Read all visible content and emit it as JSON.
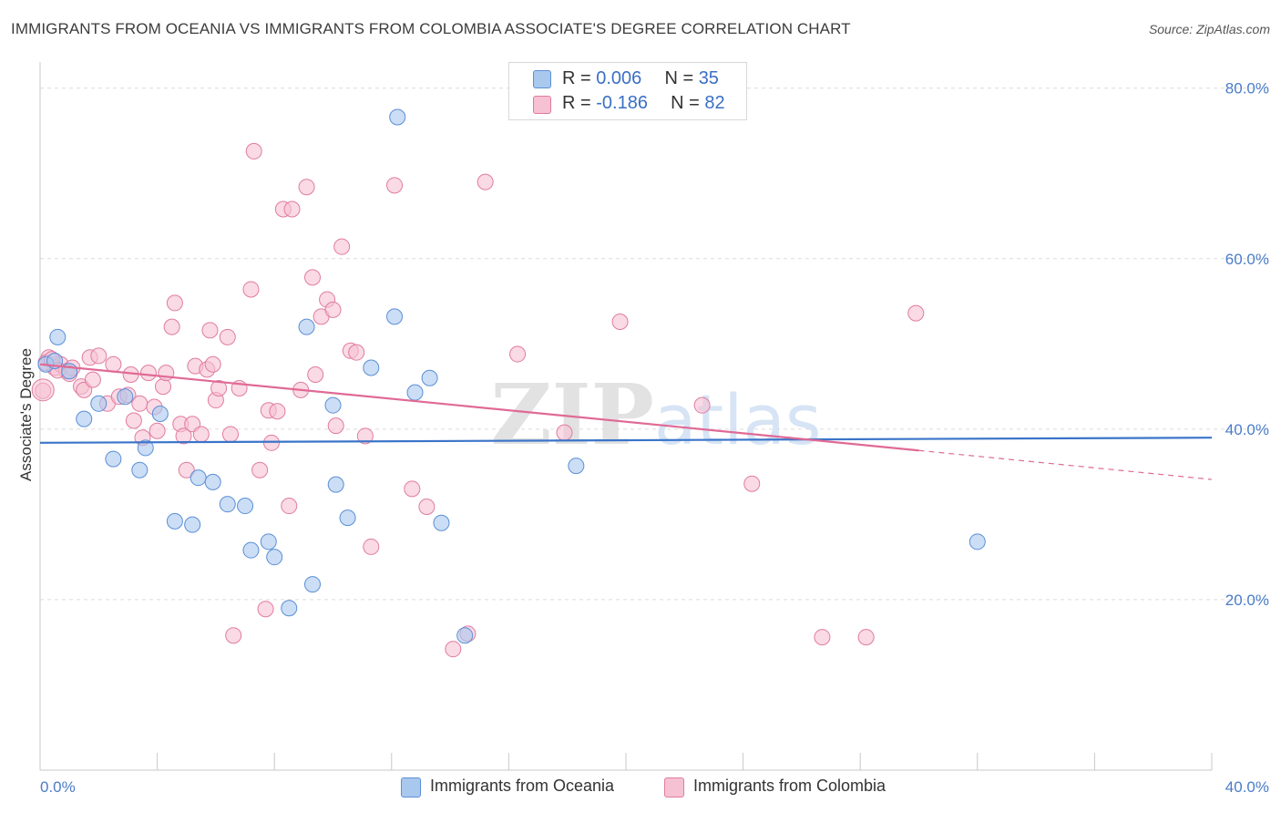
{
  "header": {
    "title": "IMMIGRANTS FROM OCEANIA VS IMMIGRANTS FROM COLOMBIA ASSOCIATE'S DEGREE CORRELATION CHART",
    "source": "Source: ZipAtlas.com"
  },
  "legend": {
    "series1": {
      "r_label": "R = ",
      "r_value": "0.006",
      "n_label": "N = ",
      "n_value": "35"
    },
    "series2": {
      "r_label": "R = ",
      "r_value": "-0.186",
      "n_label": "N = ",
      "n_value": "82"
    }
  },
  "bottom_legend": {
    "series1": "Immigrants from Oceania",
    "series2": "Immigrants from Colombia"
  },
  "watermark": "ZIPatlas",
  "colors": {
    "blue_fill": "#a9c8ee",
    "blue_stroke": "#5b8fd6",
    "blue_line": "#3a74c9",
    "pink_fill": "#f6c1d2",
    "pink_stroke": "#e07ca0",
    "pink_line": "#e06a95",
    "grid": "#dcdcdc",
    "tick_label": "#4a7cc9"
  },
  "chart_data": {
    "type": "scatter",
    "title": "IMMIGRANTS FROM OCEANIA VS IMMIGRANTS FROM COLOMBIA ASSOCIATE'S DEGREE CORRELATION CHART",
    "xlabel": "",
    "ylabel": "Associate's Degree",
    "xlim": [
      0,
      40
    ],
    "ylim": [
      0,
      82
    ],
    "x_tick_labels": [
      "0.0%",
      "40.0%"
    ],
    "y_ticks": [
      20,
      40,
      60,
      80
    ],
    "y_tick_labels": [
      "20.0%",
      "40.0%",
      "60.0%",
      "80.0%"
    ],
    "grid": "horizontal dashed",
    "legend_position": "top-center",
    "series": [
      {
        "name": "Immigrants from Oceania",
        "color": "#a9c8ee",
        "stats": {
          "R": 0.006,
          "N": 35
        },
        "trend": {
          "x": [
            0,
            40
          ],
          "y": [
            38.4,
            39.0
          ]
        },
        "points": [
          [
            0.2,
            47.6
          ],
          [
            0.6,
            50.8
          ],
          [
            1.0,
            46.8
          ],
          [
            1.5,
            41.2
          ],
          [
            2.0,
            43.0
          ],
          [
            2.5,
            36.5
          ],
          [
            2.9,
            43.8
          ],
          [
            3.4,
            35.2
          ],
          [
            3.6,
            37.8
          ],
          [
            4.1,
            41.8
          ],
          [
            4.6,
            29.2
          ],
          [
            5.2,
            28.8
          ],
          [
            5.4,
            34.3
          ],
          [
            5.9,
            33.8
          ],
          [
            6.4,
            31.2
          ],
          [
            7.0,
            31.0
          ],
          [
            7.2,
            25.8
          ],
          [
            7.8,
            26.8
          ],
          [
            8.0,
            25.0
          ],
          [
            8.5,
            19.0
          ],
          [
            9.1,
            52.0
          ],
          [
            9.3,
            21.8
          ],
          [
            10.0,
            42.8
          ],
          [
            10.1,
            33.5
          ],
          [
            10.5,
            29.6
          ],
          [
            11.3,
            47.2
          ],
          [
            12.1,
            53.2
          ],
          [
            12.2,
            76.6
          ],
          [
            12.8,
            44.3
          ],
          [
            13.3,
            46.0
          ],
          [
            13.7,
            29.0
          ],
          [
            14.5,
            15.8
          ],
          [
            18.3,
            35.7
          ],
          [
            32.0,
            26.8
          ],
          [
            0.5,
            48.0
          ]
        ]
      },
      {
        "name": "Immigrants from Colombia",
        "color": "#f6c1d2",
        "stats": {
          "R": -0.186,
          "N": 82
        },
        "trend": {
          "x": [
            0,
            30
          ],
          "y": [
            47.6,
            37.5
          ]
        },
        "trend_dashed": {
          "x": [
            30,
            40
          ],
          "y": [
            37.5,
            34.1
          ]
        },
        "points": [
          [
            0.1,
            44.5
          ],
          [
            0.3,
            48.4
          ],
          [
            0.5,
            47.2
          ],
          [
            0.7,
            47.6
          ],
          [
            0.9,
            46.8
          ],
          [
            1.1,
            47.2
          ],
          [
            1.4,
            45.0
          ],
          [
            1.5,
            44.6
          ],
          [
            1.7,
            48.4
          ],
          [
            1.8,
            45.8
          ],
          [
            2.0,
            48.6
          ],
          [
            2.3,
            43.0
          ],
          [
            2.5,
            47.6
          ],
          [
            2.7,
            43.8
          ],
          [
            3.0,
            44.0
          ],
          [
            3.1,
            46.4
          ],
          [
            3.2,
            41.0
          ],
          [
            3.4,
            43.0
          ],
          [
            3.5,
            39.0
          ],
          [
            3.7,
            46.6
          ],
          [
            3.9,
            42.6
          ],
          [
            4.0,
            39.8
          ],
          [
            4.2,
            45.0
          ],
          [
            4.3,
            46.6
          ],
          [
            4.5,
            52.0
          ],
          [
            4.6,
            54.8
          ],
          [
            4.8,
            40.6
          ],
          [
            4.9,
            39.2
          ],
          [
            5.0,
            35.2
          ],
          [
            5.2,
            40.6
          ],
          [
            5.3,
            47.4
          ],
          [
            5.5,
            39.4
          ],
          [
            5.7,
            47.0
          ],
          [
            5.8,
            51.6
          ],
          [
            5.9,
            47.6
          ],
          [
            6.0,
            43.4
          ],
          [
            6.1,
            44.8
          ],
          [
            6.4,
            50.8
          ],
          [
            6.5,
            39.4
          ],
          [
            6.8,
            44.8
          ],
          [
            6.6,
            15.8
          ],
          [
            7.2,
            56.4
          ],
          [
            7.3,
            72.6
          ],
          [
            7.5,
            35.2
          ],
          [
            7.7,
            18.9
          ],
          [
            7.8,
            42.2
          ],
          [
            7.9,
            38.4
          ],
          [
            8.1,
            42.1
          ],
          [
            8.3,
            65.8
          ],
          [
            8.5,
            31.0
          ],
          [
            8.6,
            65.8
          ],
          [
            8.9,
            44.6
          ],
          [
            9.1,
            68.4
          ],
          [
            9.3,
            57.8
          ],
          [
            9.4,
            46.4
          ],
          [
            9.6,
            53.2
          ],
          [
            9.8,
            55.2
          ],
          [
            10.0,
            54.0
          ],
          [
            10.1,
            40.4
          ],
          [
            10.3,
            61.4
          ],
          [
            10.6,
            49.2
          ],
          [
            10.8,
            49.0
          ],
          [
            11.1,
            39.2
          ],
          [
            11.3,
            26.2
          ],
          [
            12.1,
            68.6
          ],
          [
            12.7,
            33.0
          ],
          [
            13.2,
            30.9
          ],
          [
            14.1,
            14.2
          ],
          [
            14.6,
            16.0
          ],
          [
            15.2,
            69.0
          ],
          [
            16.3,
            48.8
          ],
          [
            17.9,
            39.6
          ],
          [
            19.8,
            52.6
          ],
          [
            22.6,
            42.8
          ],
          [
            24.3,
            33.6
          ],
          [
            26.7,
            15.6
          ],
          [
            28.2,
            15.6
          ],
          [
            29.9,
            53.6
          ],
          [
            0.2,
            47.8
          ],
          [
            0.4,
            48.2
          ],
          [
            0.6,
            46.9
          ],
          [
            1.0,
            46.5
          ]
        ]
      }
    ]
  }
}
